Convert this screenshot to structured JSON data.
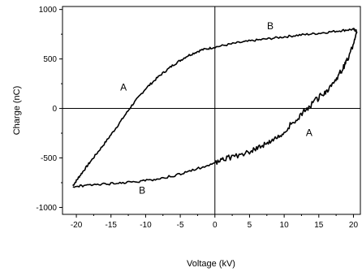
{
  "chart_data": {
    "type": "line",
    "title": "",
    "xlabel": "Voltage (kV)",
    "ylabel": "Charge (nC)",
    "xlim": [
      -22,
      21
    ],
    "ylim": [
      -1070,
      1030
    ],
    "xticks": [
      -20,
      -15,
      -10,
      -5,
      0,
      5,
      10,
      15,
      20
    ],
    "yticks": [
      -1000,
      -500,
      0,
      500,
      1000
    ],
    "grid": false,
    "legend": "none",
    "reference_lines": {
      "x": 0,
      "y": 0
    },
    "line_color": "#000000",
    "series": [
      {
        "points": [
          [
            -20.5,
            -780
          ],
          [
            -19.5,
            -680
          ],
          [
            -18,
            -540
          ],
          [
            -16,
            -360
          ],
          [
            -14,
            -170
          ],
          [
            -12,
            30
          ],
          [
            -10,
            200
          ],
          [
            -8,
            330
          ],
          [
            -6,
            440
          ],
          [
            -4,
            530
          ],
          [
            -2,
            590
          ],
          [
            0,
            620
          ],
          [
            3,
            660
          ],
          [
            6,
            690
          ],
          [
            9,
            715
          ],
          [
            12,
            740
          ],
          [
            15,
            760
          ],
          [
            18,
            785
          ],
          [
            20,
            800
          ],
          [
            20.5,
            780
          ]
        ]
      },
      {
        "points": [
          [
            20.5,
            780
          ],
          [
            20,
            650
          ],
          [
            19,
            470
          ],
          [
            18,
            350
          ],
          [
            16.5,
            210
          ],
          [
            15,
            110
          ],
          [
            13,
            -20
          ],
          [
            11,
            -160
          ],
          [
            9,
            -300
          ],
          [
            7,
            -370
          ],
          [
            5,
            -430
          ],
          [
            2,
            -500
          ],
          [
            0,
            -550
          ],
          [
            -3,
            -620
          ],
          [
            -6,
            -680
          ],
          [
            -9,
            -720
          ],
          [
            -12,
            -745
          ],
          [
            -15,
            -760
          ],
          [
            -18,
            -775
          ],
          [
            -20.5,
            -790
          ]
        ]
      }
    ],
    "annotations": [
      {
        "text": "A",
        "x": -13.2,
        "y": 180
      },
      {
        "text": "B",
        "x": 8,
        "y": 800
      },
      {
        "text": "A",
        "x": 13.6,
        "y": -280
      },
      {
        "text": "B",
        "x": -10.5,
        "y": -860
      }
    ]
  }
}
